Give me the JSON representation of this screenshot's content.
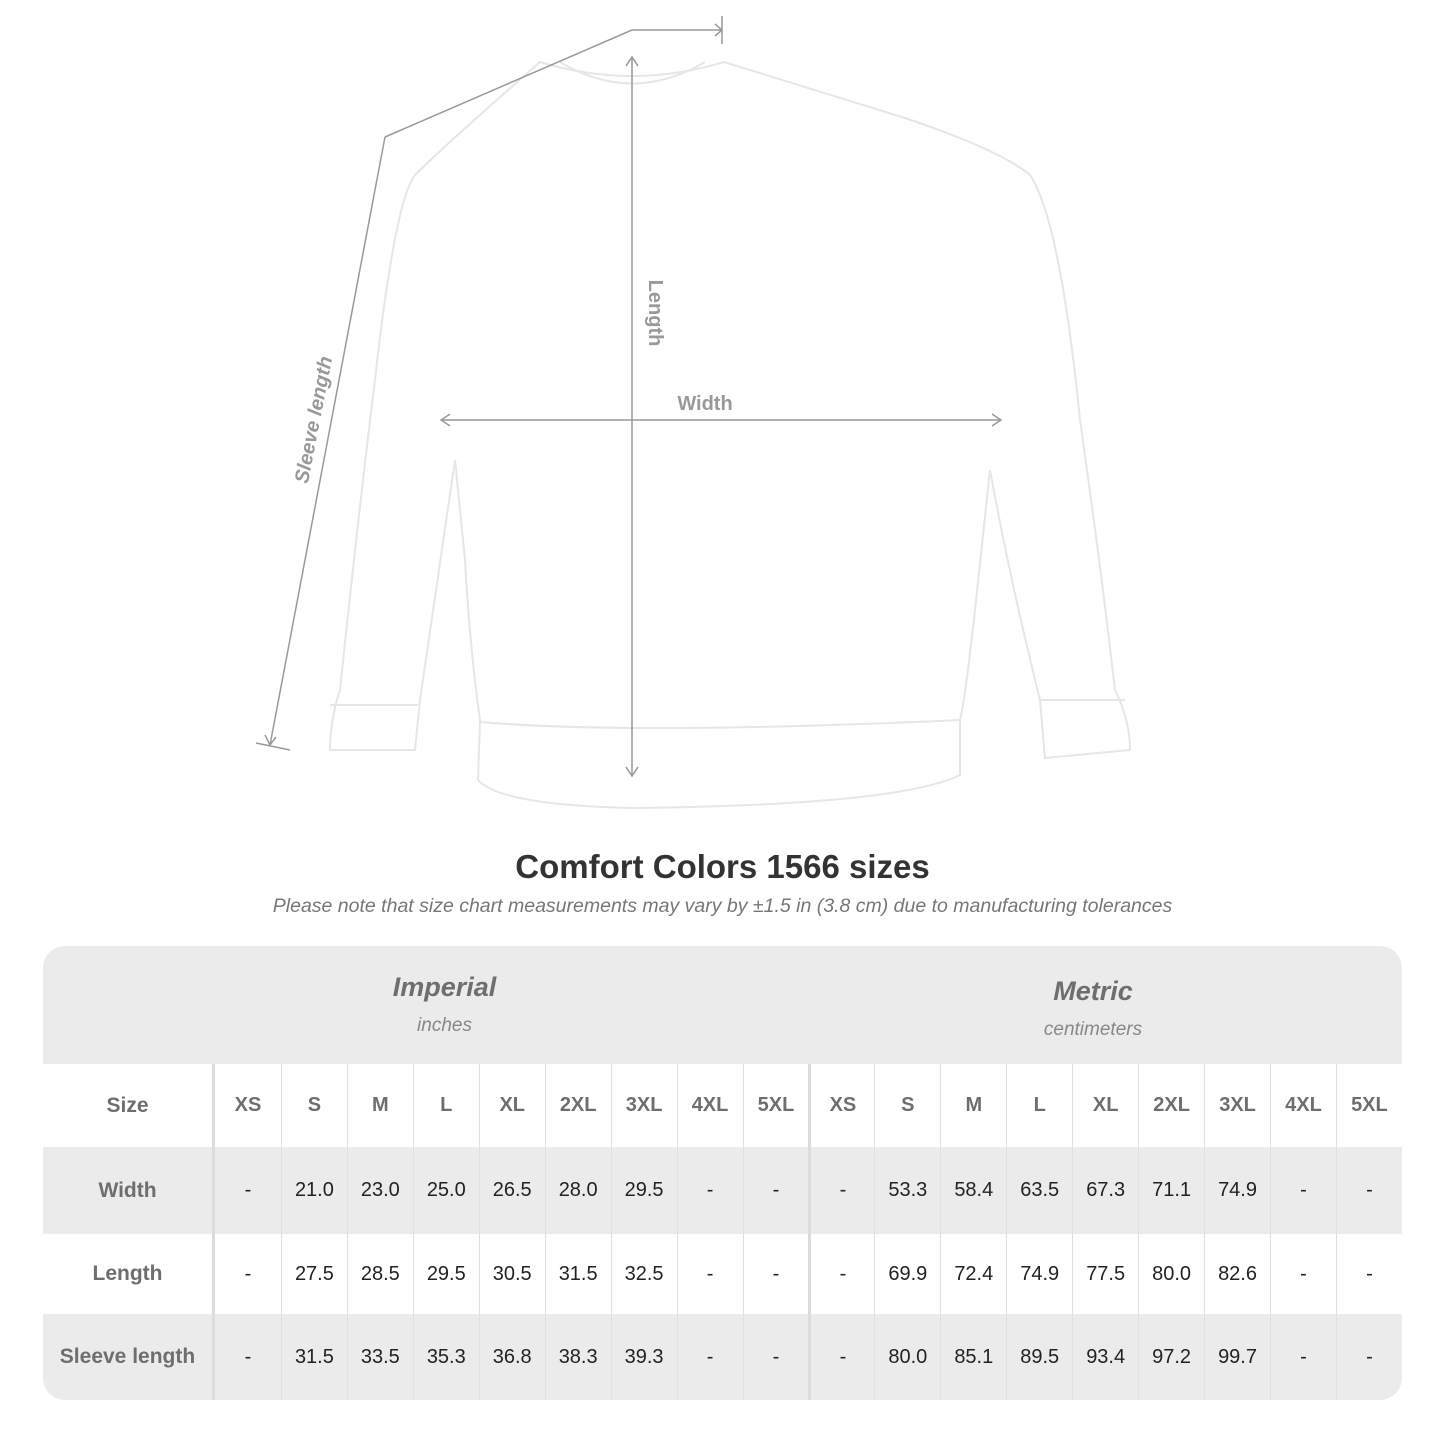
{
  "diagram": {
    "labels": {
      "length": "Length",
      "width": "Width",
      "sleeve": "Sleeve length"
    },
    "line_color": "#999999"
  },
  "title": "Comfort Colors 1566 sizes",
  "subtitle": "Please note that size chart measurements may vary by ±1.5 in (3.8 cm) due to manufacturing tolerances",
  "table": {
    "imperial": {
      "name": "Imperial",
      "unit": "inches"
    },
    "metric": {
      "name": "Metric",
      "unit": "centimeters"
    },
    "size_label": "Size",
    "sizes": [
      "XS",
      "S",
      "M",
      "L",
      "XL",
      "2XL",
      "3XL",
      "4XL",
      "5XL"
    ],
    "rows": [
      {
        "label": "Width",
        "imperial": [
          "-",
          "21.0",
          "23.0",
          "25.0",
          "26.5",
          "28.0",
          "29.5",
          "-",
          "-"
        ],
        "metric": [
          "-",
          "53.3",
          "58.4",
          "63.5",
          "67.3",
          "71.1",
          "74.9",
          "-",
          "-"
        ]
      },
      {
        "label": "Length",
        "imperial": [
          "-",
          "27.5",
          "28.5",
          "29.5",
          "30.5",
          "31.5",
          "32.5",
          "-",
          "-"
        ],
        "metric": [
          "-",
          "69.9",
          "72.4",
          "74.9",
          "77.5",
          "80.0",
          "82.6",
          "-",
          "-"
        ]
      },
      {
        "label": "Sleeve length",
        "imperial": [
          "-",
          "31.5",
          "33.5",
          "35.3",
          "36.8",
          "38.3",
          "39.3",
          "-",
          "-"
        ],
        "metric": [
          "-",
          "80.0",
          "85.1",
          "89.5",
          "93.4",
          "97.2",
          "99.7",
          "-",
          "-"
        ]
      }
    ]
  }
}
